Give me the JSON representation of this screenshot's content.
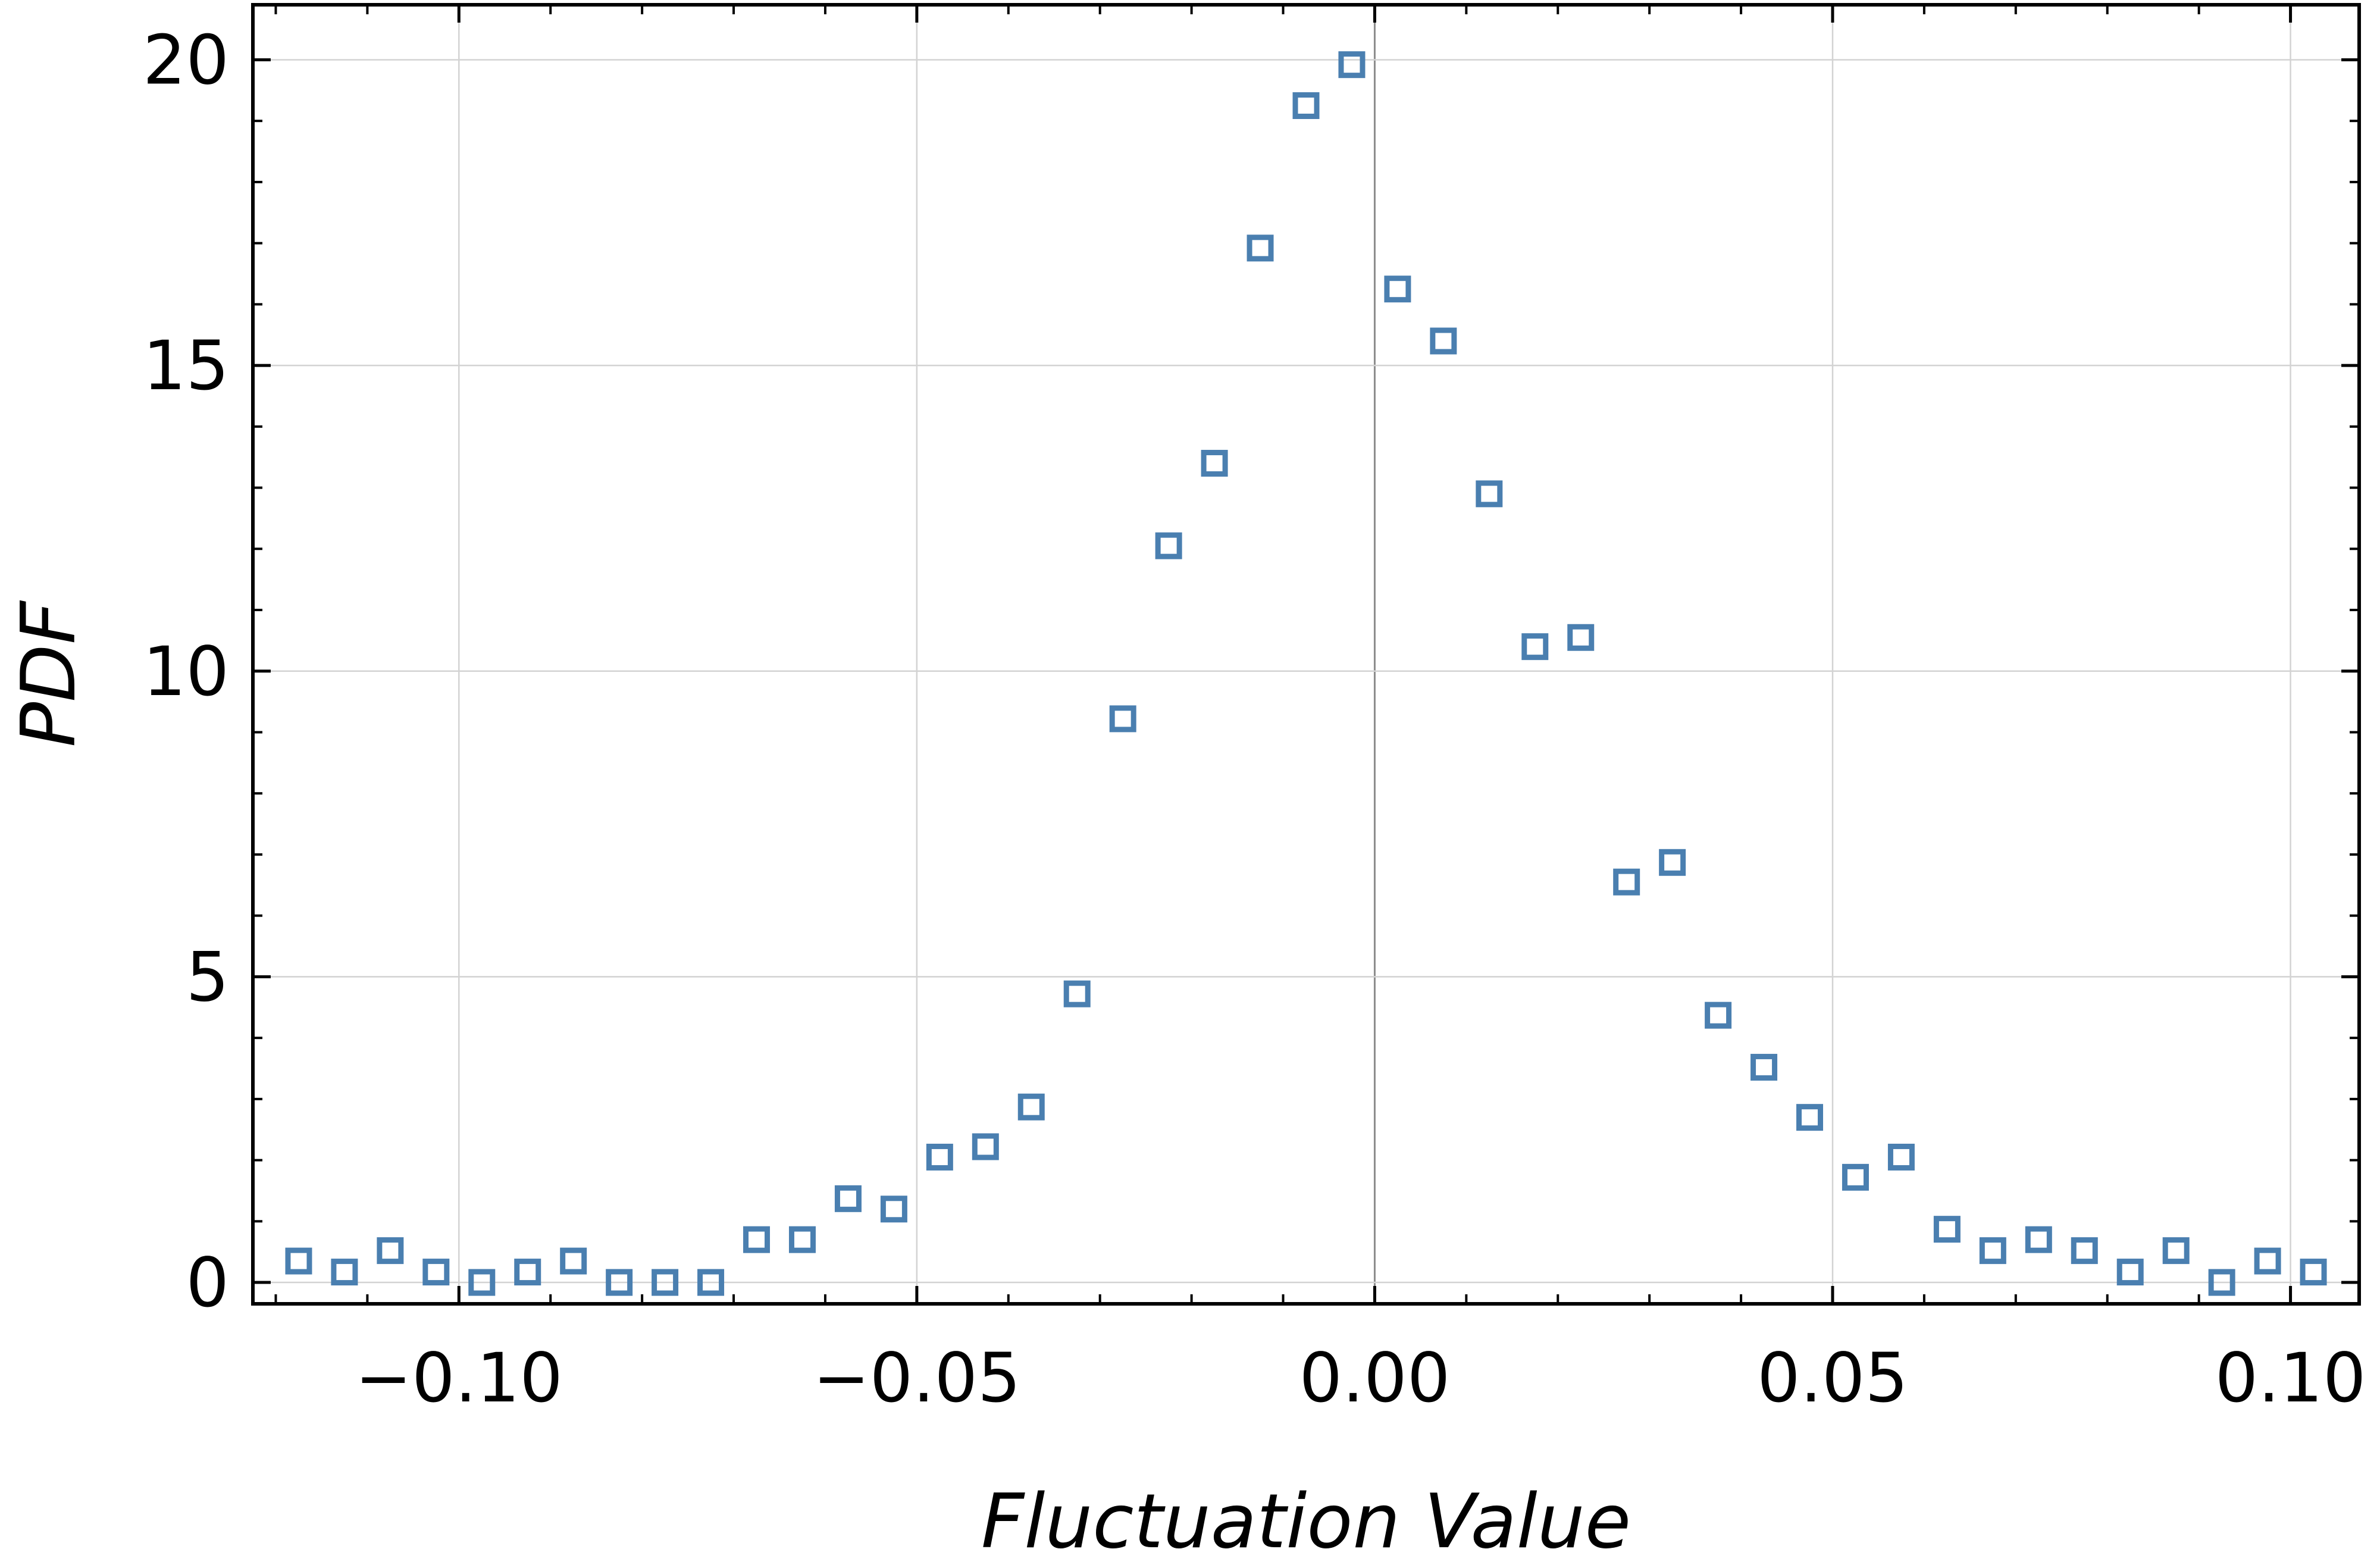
{
  "chart_data": {
    "type": "scatter",
    "title": "",
    "xlabel": "Fluctuation Value",
    "ylabel": "PDF",
    "xlim": [
      -0.1225,
      0.1075
    ],
    "ylim": [
      -0.35,
      20.9
    ],
    "xticks": [
      -0.1,
      -0.05,
      0.0,
      0.05,
      0.1
    ],
    "xtick_labels": [
      "−0.10",
      "−0.05",
      "0.00",
      "0.05",
      "0.10"
    ],
    "yticks": [
      0,
      5,
      10,
      15,
      20
    ],
    "ytick_labels": [
      "0",
      "5",
      "10",
      "15",
      "20"
    ],
    "grid": true,
    "legend": "none",
    "marker": "open-square",
    "color": "#4a7fb0",
    "series": [
      {
        "x": [
          -0.1175,
          -0.1125,
          -0.1075,
          -0.1025,
          -0.0975,
          -0.0925,
          -0.0875,
          -0.0825,
          -0.0775,
          -0.0725,
          -0.0675,
          -0.0625,
          -0.0575,
          -0.0525,
          -0.0475,
          -0.0425,
          -0.0375,
          -0.0325,
          -0.0275,
          -0.0225,
          -0.0175,
          -0.0125,
          -0.0075,
          -0.0025,
          0.0025,
          0.0075,
          0.0125,
          0.0175,
          0.0225,
          0.0275,
          0.0325,
          0.0375,
          0.0425,
          0.0475,
          0.0525,
          0.0575,
          0.0625,
          0.0675,
          0.0725,
          0.0775,
          0.0825,
          0.0875,
          0.0925,
          0.0975,
          0.1025
        ],
        "y": [
          0.35,
          0.17,
          0.52,
          0.17,
          0.0,
          0.17,
          0.35,
          0.0,
          0.0,
          0.0,
          0.7,
          0.7,
          1.37,
          1.2,
          2.05,
          2.22,
          2.87,
          4.72,
          9.22,
          12.05,
          13.4,
          16.92,
          19.25,
          19.92,
          16.25,
          15.4,
          12.9,
          10.4,
          10.55,
          6.55,
          6.87,
          4.37,
          3.52,
          2.7,
          1.72,
          2.05,
          0.87,
          0.52,
          0.7,
          0.52,
          0.17,
          0.52,
          0.0,
          0.35,
          0.17
        ]
      }
    ]
  }
}
